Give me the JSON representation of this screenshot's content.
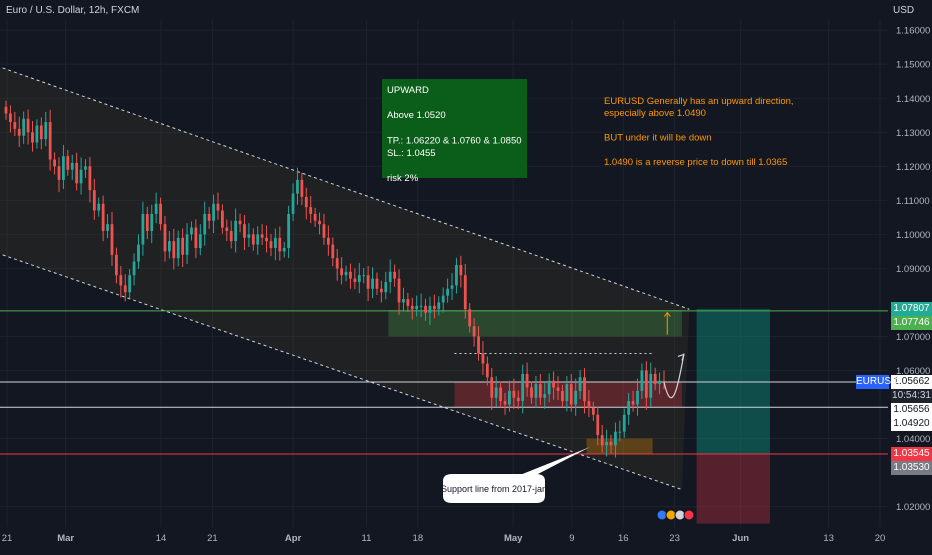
{
  "header": {
    "symbol_title": "Euro / U.S. Dollar, 12h, FXCM",
    "currency": "USD"
  },
  "chart_data": {
    "type": "candlestick",
    "title": "Euro / U.S. Dollar, 12h, FXCM",
    "y_unit": "USD",
    "ylim": [
      1.014,
      1.163
    ],
    "price_ticks": [
      "1.16000",
      "1.15000",
      "1.14000",
      "1.13000",
      "1.12000",
      "1.11000",
      "1.10000",
      "1.09000",
      "1.07000",
      "1.06000",
      "1.04000",
      "1.02000"
    ],
    "price_tick_values": [
      1.16,
      1.15,
      1.14,
      1.13,
      1.12,
      1.11,
      1.1,
      1.09,
      1.07,
      1.06,
      1.04,
      1.02
    ],
    "x_ticks": [
      "21",
      "Mar",
      "14",
      "21",
      "Apr",
      "11",
      "18",
      "May",
      "9",
      "16",
      "23",
      "Jun",
      "13",
      "20"
    ],
    "x_tick_dates": [
      "2022-02-21",
      "2022-03-01",
      "2022-03-14",
      "2022-03-21",
      "2022-04-01",
      "2022-04-11",
      "2022-04-18",
      "2022-05-01",
      "2022-05-09",
      "2022-05-16",
      "2022-05-23",
      "2022-06-01",
      "2022-06-13",
      "2022-06-20"
    ],
    "x_tick_bold": [
      false,
      true,
      false,
      false,
      true,
      false,
      false,
      true,
      false,
      false,
      false,
      true,
      false,
      false
    ],
    "price_markers": [
      {
        "label": "1.07807",
        "value": 1.07807,
        "color": "#22ab94",
        "text_color": "#ffffff"
      },
      {
        "label": "1.07746",
        "value": 1.07746,
        "color": "#4caf50",
        "text_color": "#ffffff"
      },
      {
        "label": "1.05662",
        "value": 1.05662,
        "color": "#ffffff",
        "text_color": "#131722",
        "sub": "10:54:31"
      },
      {
        "label": "1.05656",
        "value": 1.05656,
        "color": "#ffffff",
        "text_color": "#131722"
      },
      {
        "label": "1.04920",
        "value": 1.0492,
        "color": "#ffffff",
        "text_color": "#131722"
      },
      {
        "label": "1.03545",
        "value": 1.03545,
        "color": "#f23645",
        "text_color": "#ffffff"
      },
      {
        "label": "1.03530",
        "value": 1.0353,
        "color": "#787b86",
        "text_color": "#ffffff"
      }
    ],
    "symbol_tag": "EURUSD",
    "horizontal_lines": [
      {
        "value": 1.0775,
        "color": "#4caf50"
      },
      {
        "value": 1.0566,
        "color": "#d1d4dc"
      },
      {
        "value": 1.0492,
        "color": "#d1d4dc"
      },
      {
        "value": 1.03545,
        "color": "#f23645"
      }
    ],
    "close_series": [
      1.1355,
      1.133,
      1.131,
      1.129,
      1.134,
      1.13,
      1.127,
      1.132,
      1.128,
      1.133,
      1.122,
      1.12,
      1.116,
      1.123,
      1.119,
      1.121,
      1.115,
      1.119,
      1.12,
      1.113,
      1.107,
      1.109,
      1.101,
      1.103,
      1.094,
      1.088,
      1.085,
      1.083,
      1.088,
      1.092,
      1.097,
      1.106,
      1.101,
      1.106,
      1.109,
      1.103,
      1.095,
      1.098,
      1.093,
      1.099,
      1.094,
      1.1,
      1.102,
      1.096,
      1.1,
      1.106,
      1.104,
      1.109,
      1.107,
      1.102,
      1.101,
      1.098,
      1.104,
      1.103,
      1.099,
      1.1,
      1.097,
      1.1,
      1.099,
      1.098,
      1.096,
      1.099,
      1.095,
      1.096,
      1.106,
      1.112,
      1.116,
      1.111,
      1.108,
      1.106,
      1.104,
      1.103,
      1.099,
      1.097,
      1.093,
      1.09,
      1.088,
      1.089,
      1.087,
      1.086,
      1.088,
      1.088,
      1.084,
      1.087,
      1.084,
      1.083,
      1.086,
      1.089,
      1.087,
      1.08,
      1.081,
      1.079,
      1.078,
      1.079,
      1.079,
      1.077,
      1.079,
      1.078,
      1.08,
      1.082,
      1.084,
      1.085,
      1.091,
      1.088,
      1.078,
      1.073,
      1.07,
      1.065,
      1.062,
      1.058,
      1.052,
      1.055,
      1.051,
      1.05,
      1.054,
      1.052,
      1.051,
      1.059,
      1.055,
      1.052,
      1.056,
      1.052,
      1.053,
      1.057,
      1.055,
      1.054,
      1.051,
      1.056,
      1.05,
      1.054,
      1.058,
      1.051,
      1.049,
      1.047,
      1.041,
      1.038,
      1.039,
      1.038,
      1.042,
      1.042,
      1.047,
      1.051,
      1.05,
      1.054,
      1.06,
      1.052,
      1.059,
      1.056,
      1.057,
      1.0566
    ],
    "channel": {
      "upper": [
        {
          "x": "2022-02-15",
          "y": 1.153
        },
        {
          "x": "2022-05-25",
          "y": 1.078
        }
      ],
      "lower": [
        {
          "x": "2022-02-15",
          "y": 1.098
        },
        {
          "x": "2022-05-24",
          "y": 1.025
        }
      ]
    },
    "zones": [
      {
        "name": "buy-zone",
        "x0": "2022-04-14",
        "x1": "2022-05-24",
        "y0": 1.07,
        "y1": 1.0778,
        "color": "#4caf50"
      },
      {
        "name": "sell-zone",
        "x0": "2022-04-23",
        "x1": "2022-05-24",
        "y0": 1.0492,
        "y1": 1.0566,
        "color": "#f23645"
      },
      {
        "name": "support-zone",
        "x0": "2022-05-11",
        "x1": "2022-05-20",
        "y0": 1.0355,
        "y1": 1.04,
        "color": "#ff9800"
      }
    ],
    "position_box": {
      "x0": "2022-05-26",
      "x1": "2022-06-05",
      "entry": 1.0354,
      "target": 1.0781,
      "stop": 1.015
    },
    "dashed_target": {
      "x0": "2022-04-23",
      "x1": "2022-05-20",
      "y": 1.065
    },
    "arrows": [
      {
        "x": "2022-05-22",
        "y0": 1.0705,
        "y1": 1.077,
        "color": "#ff9800"
      }
    ],
    "annotations": {
      "plan_box": {
        "lines": [
          "UPWARD",
          "",
          "Above 1.0520",
          "",
          "TP.:  1.06220  & 1.0760 & 1.0850",
          "SL.: 1.0455",
          "",
          "risk 2%"
        ],
        "bg_color": "#0b5e1a",
        "text_color": "#ffffff"
      },
      "orange_note": {
        "lines": [
          "EURUSD Generally has an upward direction,",
          "especially above 1.0490",
          "",
          "BUT under it will be down",
          "",
          "1.0490 is a reverse price to down till 1.0365"
        ],
        "text_color": "#ff9800"
      },
      "callout": {
        "text": "Support line from 2017-jan"
      }
    }
  }
}
